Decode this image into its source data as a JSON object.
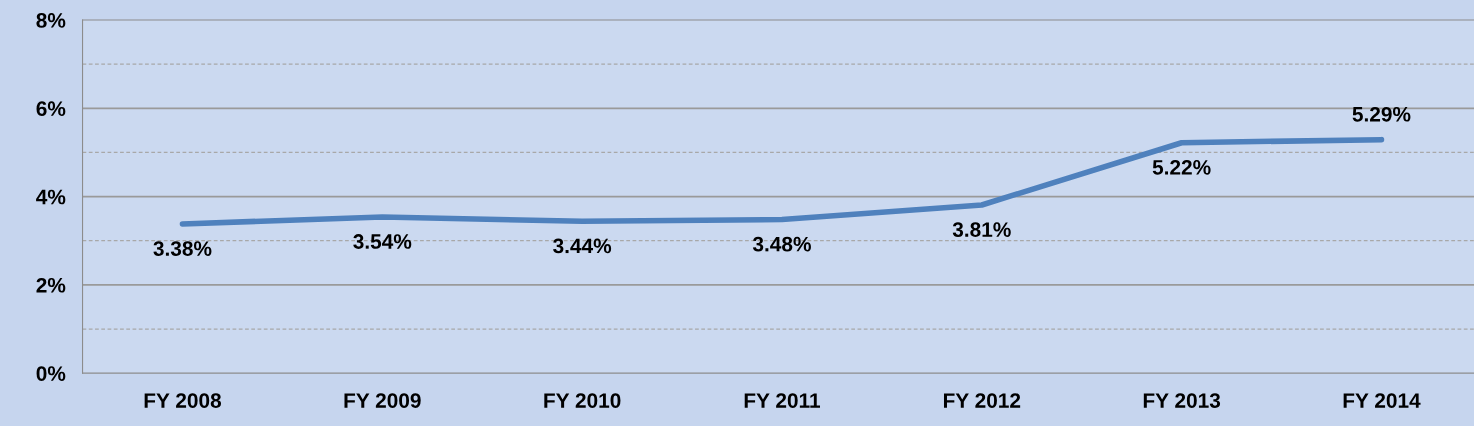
{
  "chart_data": {
    "type": "line",
    "categories": [
      "FY 2008",
      "FY 2009",
      "FY 2010",
      "FY 2011",
      "FY 2012",
      "FY 2013",
      "FY 2014"
    ],
    "series": [
      {
        "color": "#4f81bd",
        "values": [
          3.38,
          3.54,
          3.44,
          3.48,
          3.81,
          5.22,
          5.29
        ],
        "value_labels": [
          "3.38%",
          "3.54%",
          "3.44%",
          "3.48%",
          "3.81%",
          "5.22%",
          "5.29%"
        ]
      }
    ],
    "ylim": [
      0,
      8
    ],
    "yticks": [
      {
        "value": 0,
        "label": "0%"
      },
      {
        "value": 1,
        "label": null
      },
      {
        "value": 2,
        "label": "2%"
      },
      {
        "value": 3,
        "label": null
      },
      {
        "value": 4,
        "label": "4%"
      },
      {
        "value": 5,
        "label": null
      },
      {
        "value": 6,
        "label": "6%"
      },
      {
        "value": 7,
        "label": null
      },
      {
        "value": 8,
        "label": "8%"
      }
    ],
    "grid": "y",
    "marker": "none",
    "line_style": "solid",
    "legend": false
  }
}
